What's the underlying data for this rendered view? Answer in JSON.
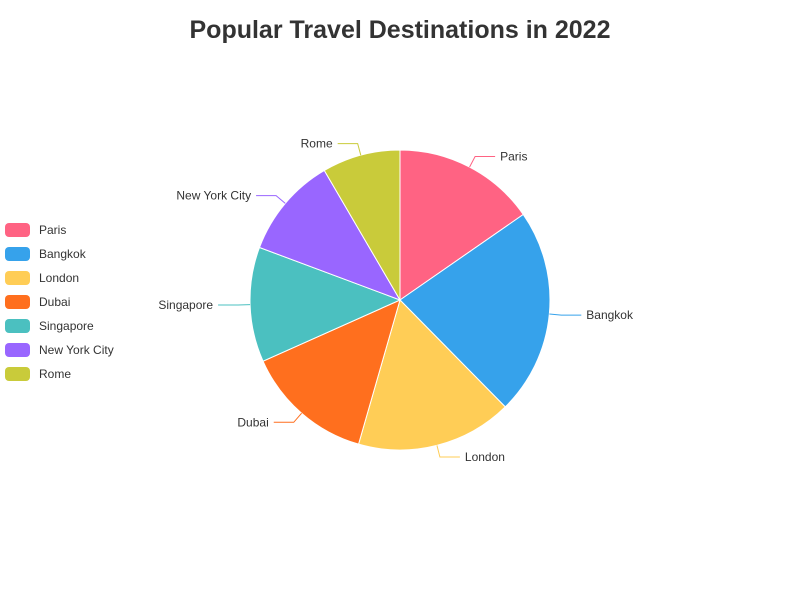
{
  "chart_data": {
    "type": "pie",
    "title": "Popular Travel Destinations in 2022",
    "legend_position": "left",
    "slices": [
      {
        "name": "Paris",
        "value": 15.5,
        "color": "#ff6383"
      },
      {
        "name": "Bangkok",
        "value": 22.5,
        "color": "#36a2eb"
      },
      {
        "name": "London",
        "value": 17,
        "color": "#ffcd56"
      },
      {
        "name": "Dubai",
        "value": 14,
        "color": "#ff6f1e"
      },
      {
        "name": "Singapore",
        "value": 12.5,
        "color": "#4bc0c0"
      },
      {
        "name": "New York City",
        "value": 11,
        "color": "#9966ff"
      },
      {
        "name": "Rome",
        "value": 8.5,
        "color": "#c9cb3a"
      }
    ]
  }
}
